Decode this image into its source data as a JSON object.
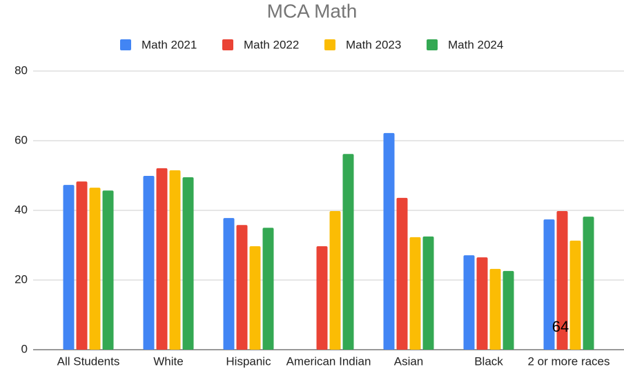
{
  "chart_data": {
    "type": "bar",
    "title": "MCA Math",
    "categories": [
      "All Students",
      "White",
      "Hispanic",
      "American Indian",
      "Asian",
      "Black",
      "2 or more races"
    ],
    "series": [
      {
        "name": "Math 2021",
        "color": "#4285f4",
        "values": [
          47.3,
          49.9,
          37.8,
          null,
          62.2,
          27.1,
          37.4
        ]
      },
      {
        "name": "Math 2022",
        "color": "#ea4335",
        "values": [
          48.3,
          52.1,
          35.8,
          29.7,
          43.6,
          26.5,
          39.8
        ]
      },
      {
        "name": "Math 2023",
        "color": "#fbbc04",
        "values": [
          46.5,
          51.5,
          29.7,
          39.8,
          32.3,
          23.2,
          31.3
        ]
      },
      {
        "name": "Math 2024",
        "color": "#34a853",
        "values": [
          45.7,
          49.5,
          35.0,
          56.2,
          32.5,
          22.6,
          38.2
        ]
      }
    ],
    "ylim": [
      0,
      80
    ],
    "yticks": [
      0,
      20,
      40,
      60,
      80
    ],
    "grid": true,
    "legend": "top",
    "annotations": [
      "64"
    ]
  }
}
